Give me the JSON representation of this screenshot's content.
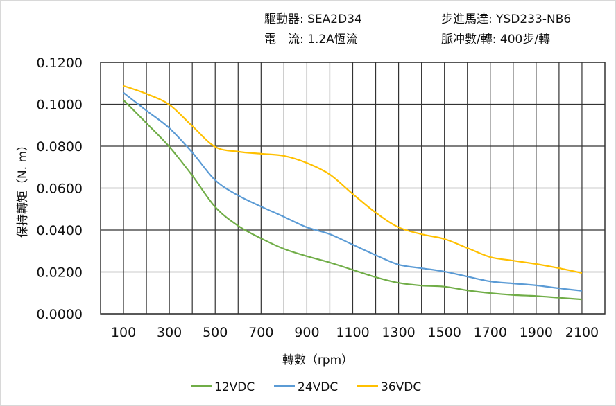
{
  "header": {
    "driver_label": "驅動器:",
    "driver_value": "SEA2D34",
    "motor_label": "步進馬達:",
    "motor_value": "YSD233-NB6",
    "current_label": "電　流:",
    "current_value": "1.2A恆流",
    "pulse_label": "脈冲數/轉:",
    "pulse_value": "400步/轉"
  },
  "chart_data": {
    "type": "line",
    "title": "",
    "xlabel": "轉數（rpm）",
    "ylabel": "保持轉矩（N. m）",
    "xlim": [
      0,
      2200
    ],
    "ylim": [
      0,
      0.12
    ],
    "grid": true,
    "legend_position": "bottom",
    "x": [
      100,
      200,
      300,
      400,
      500,
      600,
      700,
      800,
      900,
      1000,
      1100,
      1200,
      1300,
      1400,
      1500,
      1600,
      1700,
      1800,
      1900,
      2000,
      2100
    ],
    "x_ticks": [
      "100",
      "300",
      "500",
      "700",
      "900",
      "1100",
      "1300",
      "1500",
      "1700",
      "1900",
      "2100"
    ],
    "y_ticks": [
      "0.0000",
      "0.0200",
      "0.0400",
      "0.0600",
      "0.0800",
      "0.1000",
      "0.1200"
    ],
    "series": [
      {
        "name": "12VDC",
        "color": "#70ad47",
        "values": [
          0.102,
          0.091,
          0.0797,
          0.066,
          0.051,
          0.042,
          0.036,
          0.031,
          0.0275,
          0.0245,
          0.021,
          0.0175,
          0.0148,
          0.0135,
          0.013,
          0.0112,
          0.0099,
          0.009,
          0.0085,
          0.0077,
          0.0069
        ]
      },
      {
        "name": "24VDC",
        "color": "#5b9bd5",
        "values": [
          0.1055,
          0.097,
          0.0886,
          0.077,
          0.0638,
          0.0565,
          0.0512,
          0.0463,
          0.0413,
          0.038,
          0.033,
          0.028,
          0.0235,
          0.0218,
          0.0202,
          0.0178,
          0.0155,
          0.0145,
          0.0136,
          0.0122,
          0.011
        ]
      },
      {
        "name": "36VDC",
        "color": "#ffc000",
        "values": [
          0.1088,
          0.105,
          0.0998,
          0.0896,
          0.0797,
          0.0774,
          0.0764,
          0.0754,
          0.072,
          0.0665,
          0.0572,
          0.0483,
          0.0413,
          0.038,
          0.0357,
          0.0314,
          0.0271,
          0.0254,
          0.0238,
          0.0218,
          0.0195
        ]
      }
    ]
  }
}
